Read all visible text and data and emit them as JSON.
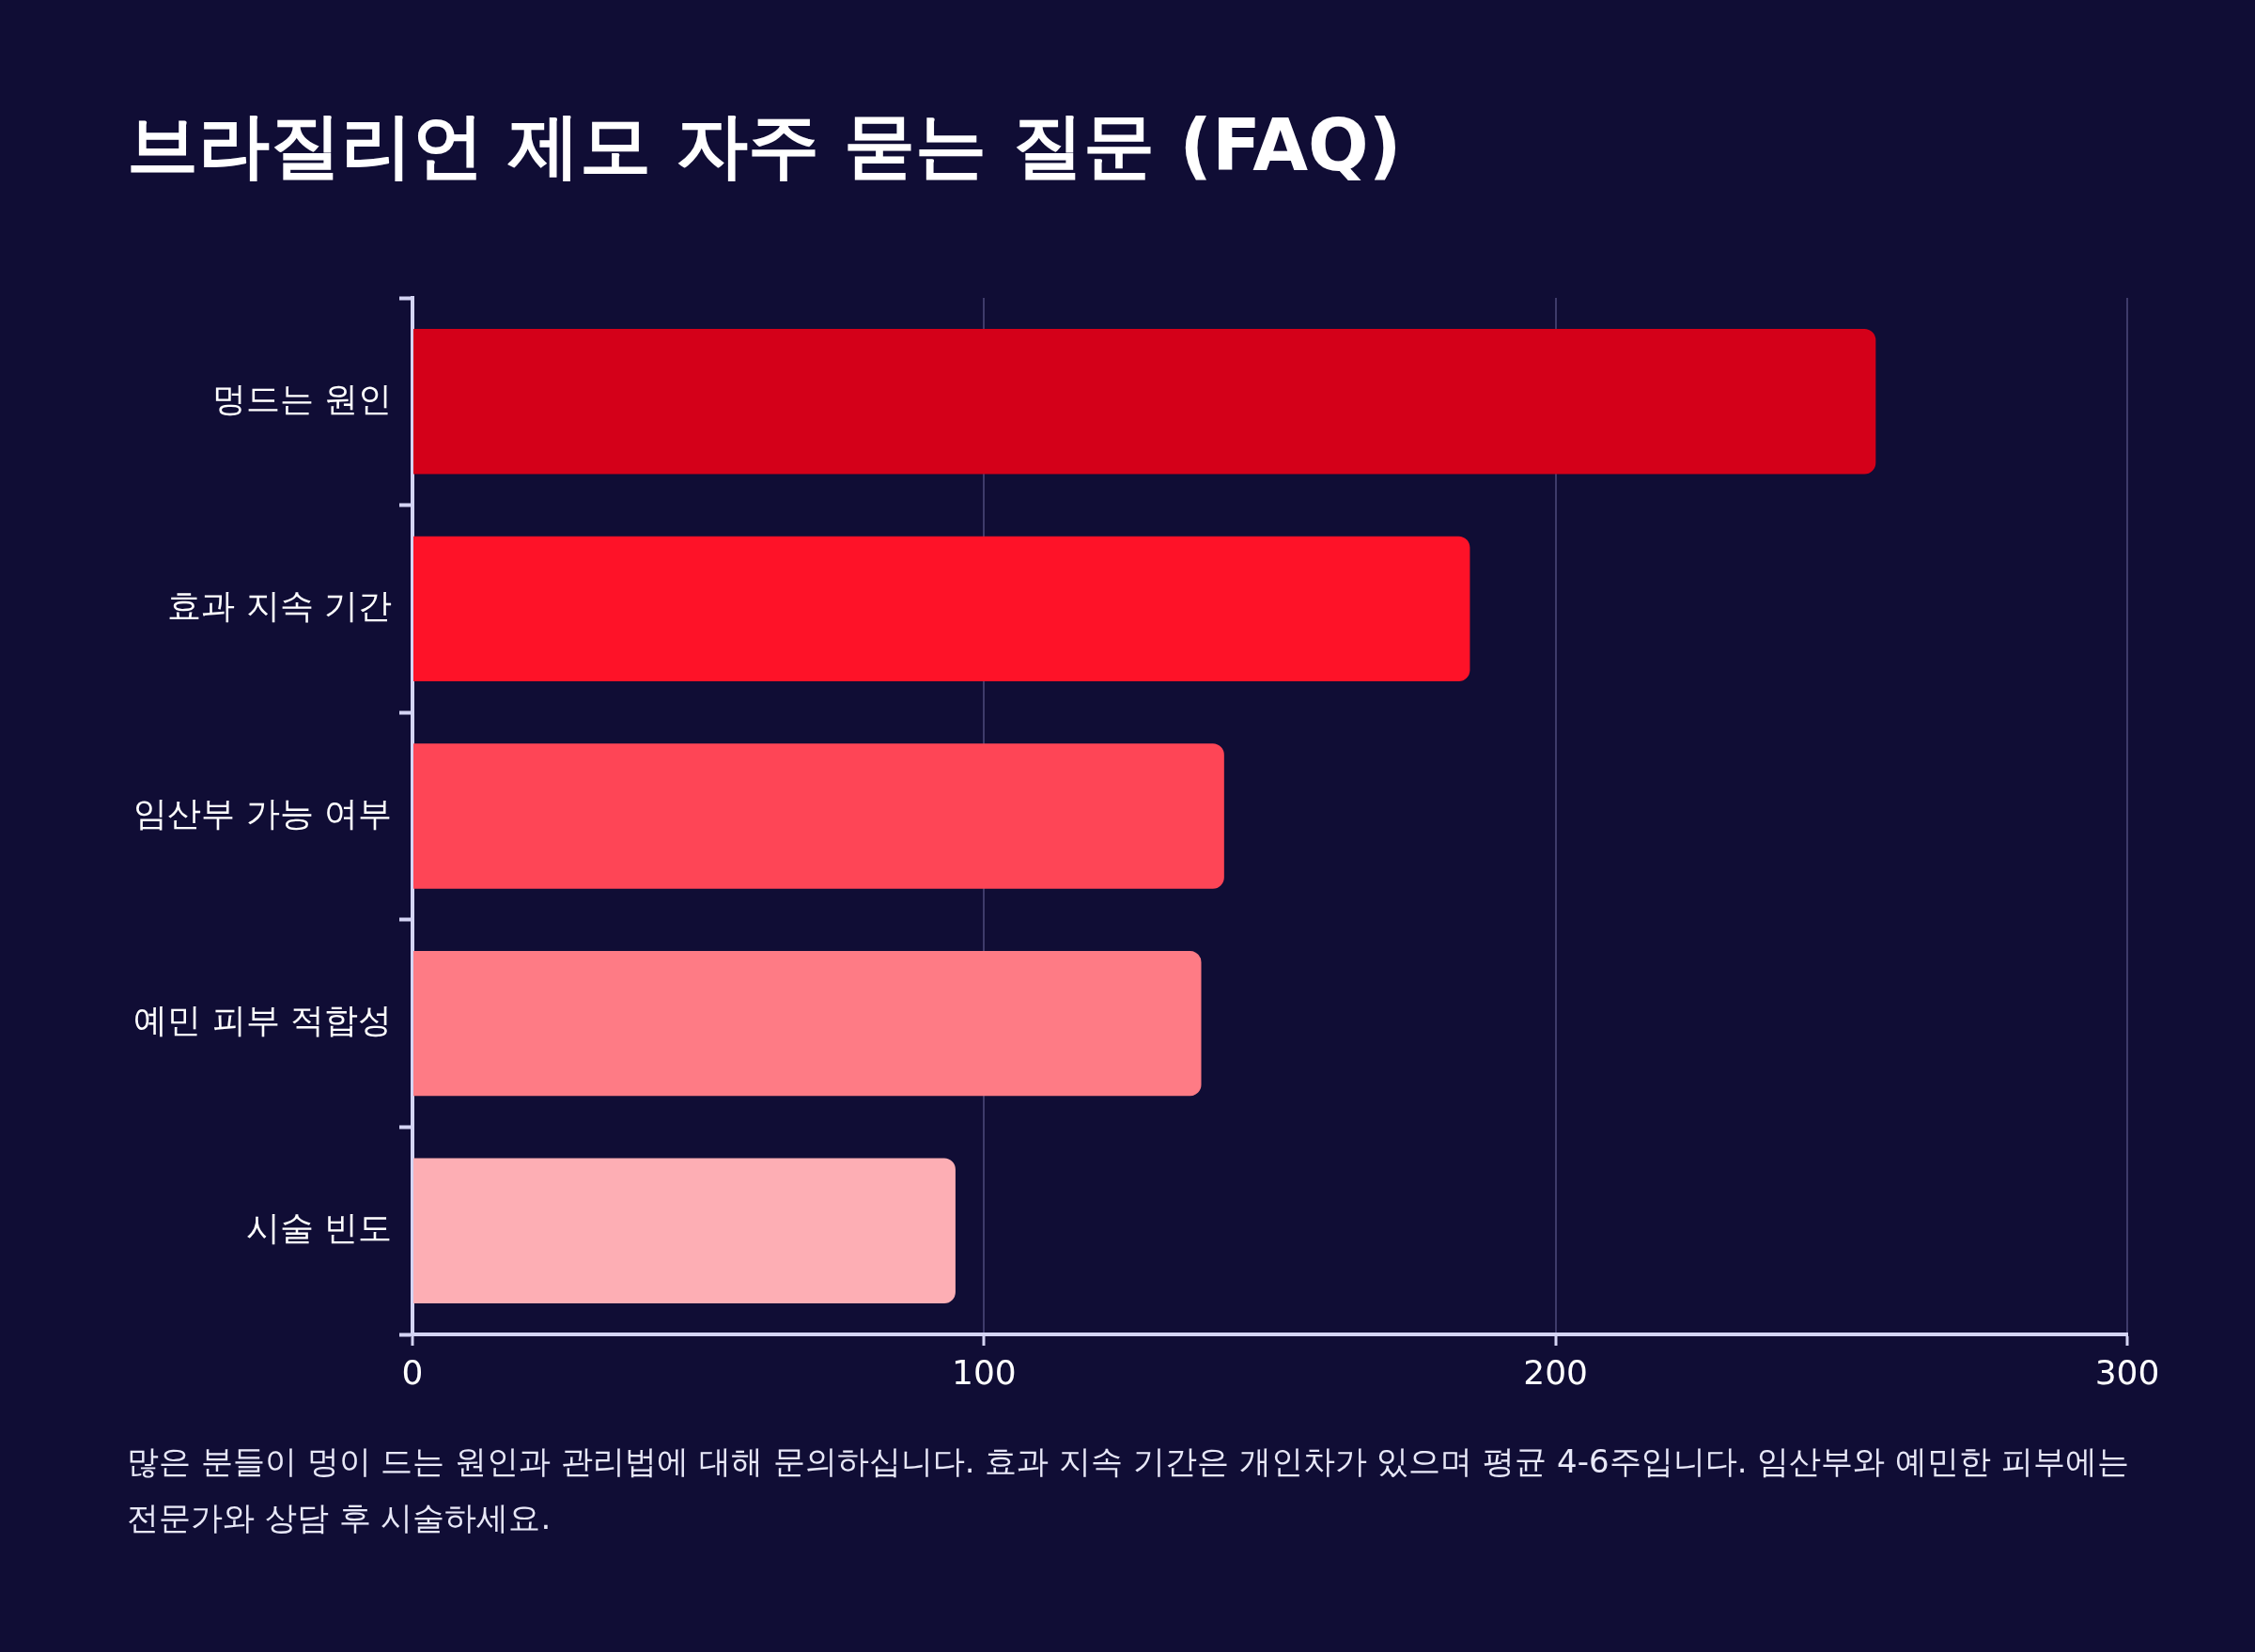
{
  "chart_data": {
    "type": "bar",
    "orientation": "horizontal",
    "title": "브라질리언 제모 자주 묻는 질문 (FAQ)",
    "categories": [
      "멍드는 원인",
      "효과 지속 기간",
      "임산부 가능 여부",
      "예민 피부 적합성",
      "시술 빈도"
    ],
    "values": [
      256,
      185,
      142,
      138,
      95
    ],
    "colors": [
      "#d40019",
      "#fe1228",
      "#fe4556",
      "#fe7b85",
      "#fdaeb4"
    ],
    "xlim": [
      0,
      300
    ],
    "xticks": [
      0,
      100,
      200,
      300
    ],
    "grid": "x",
    "annotations": [
      "많은 분들이 멍이 드는 원인과 관리법에 대해 문의하십니다. 효과 지속 기간은 개인차가 있으며 평균 4-6주입니다. 임산부와 예민한 피부에는 전문가와 상담 후 시술하세요."
    ]
  }
}
